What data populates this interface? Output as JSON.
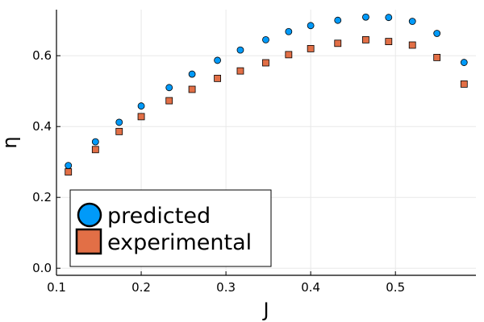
{
  "chart_data": {
    "type": "scatter",
    "xlabel": "J",
    "ylabel": "η",
    "xlim": [
      0.1,
      0.595
    ],
    "ylim": [
      -0.02,
      0.73
    ],
    "xticks": [
      "0.1",
      "0.2",
      "0.3",
      "0.4",
      "0.5"
    ],
    "yticks": [
      "0.0",
      "0.2",
      "0.4",
      "0.6"
    ],
    "grid": true,
    "legend_position": "bottom-left",
    "series": [
      {
        "name": "predicted",
        "marker": "circle",
        "color": "#009AF9",
        "x": [
          0.114,
          0.146,
          0.174,
          0.2,
          0.233,
          0.26,
          0.29,
          0.317,
          0.347,
          0.374,
          0.4,
          0.432,
          0.465,
          0.492,
          0.52,
          0.549,
          0.581
        ],
        "y": [
          0.29,
          0.357,
          0.412,
          0.458,
          0.51,
          0.548,
          0.587,
          0.616,
          0.645,
          0.668,
          0.685,
          0.7,
          0.709,
          0.708,
          0.697,
          0.663,
          0.581
        ]
      },
      {
        "name": "experimental",
        "marker": "square",
        "color": "#E26F46",
        "x": [
          0.114,
          0.146,
          0.174,
          0.2,
          0.233,
          0.26,
          0.29,
          0.317,
          0.347,
          0.374,
          0.4,
          0.432,
          0.465,
          0.492,
          0.52,
          0.549,
          0.581
        ],
        "y": [
          0.272,
          0.335,
          0.386,
          0.428,
          0.473,
          0.505,
          0.536,
          0.557,
          0.58,
          0.603,
          0.62,
          0.635,
          0.645,
          0.64,
          0.63,
          0.595,
          0.52
        ]
      }
    ]
  }
}
